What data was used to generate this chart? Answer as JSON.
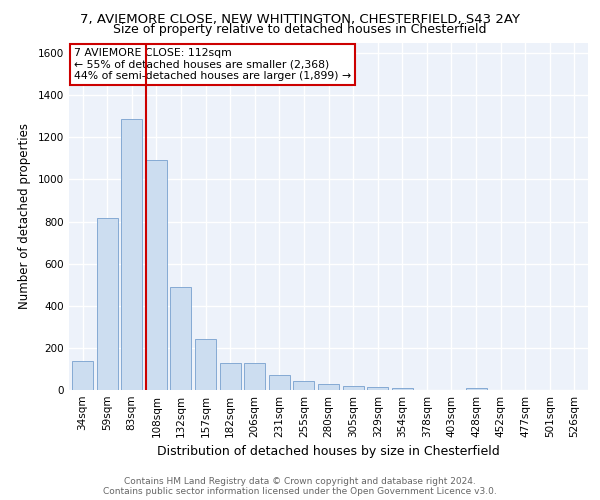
{
  "title_line1": "7, AVIEMORE CLOSE, NEW WHITTINGTON, CHESTERFIELD, S43 2AY",
  "title_line2": "Size of property relative to detached houses in Chesterfield",
  "xlabel": "Distribution of detached houses by size in Chesterfield",
  "ylabel": "Number of detached properties",
  "footnote_line1": "Contains HM Land Registry data © Crown copyright and database right 2024.",
  "footnote_line2": "Contains public sector information licensed under the Open Government Licence v3.0.",
  "bar_labels": [
    "34sqm",
    "59sqm",
    "83sqm",
    "108sqm",
    "132sqm",
    "157sqm",
    "182sqm",
    "206sqm",
    "231sqm",
    "255sqm",
    "280sqm",
    "305sqm",
    "329sqm",
    "354sqm",
    "378sqm",
    "403sqm",
    "428sqm",
    "452sqm",
    "477sqm",
    "501sqm",
    "526sqm"
  ],
  "bar_values": [
    140,
    815,
    1285,
    1090,
    490,
    240,
    130,
    130,
    70,
    45,
    30,
    20,
    15,
    10,
    0,
    0,
    10,
    0,
    0,
    0,
    0
  ],
  "bar_color": "#ccddf0",
  "bar_edge_color": "#85aad4",
  "vline_color": "#cc0000",
  "annotation_line1": "7 AVIEMORE CLOSE: 112sqm",
  "annotation_line2": "← 55% of detached houses are smaller (2,368)",
  "annotation_line3": "44% of semi-detached houses are larger (1,899) →",
  "annotation_box_color": "#cc0000",
  "ylim": [
    0,
    1650
  ],
  "yticks": [
    0,
    200,
    400,
    600,
    800,
    1000,
    1200,
    1400,
    1600
  ],
  "background_color": "#edf2fa",
  "grid_color": "#ffffff",
  "title1_fontsize": 9.5,
  "title2_fontsize": 9.0,
  "ylabel_fontsize": 8.5,
  "xlabel_fontsize": 9.0,
  "tick_fontsize": 7.5,
  "footnote_fontsize": 6.5,
  "annotation_fontsize": 7.8
}
